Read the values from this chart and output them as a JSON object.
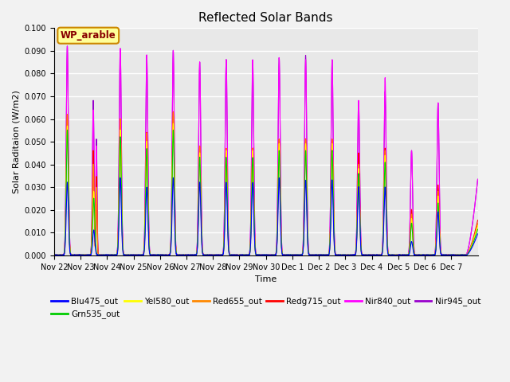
{
  "title": "Reflected Solar Bands",
  "ylabel": "Solar Raditaion (W/m2)",
  "xlabel": "Time",
  "ylim": [
    0,
    0.1
  ],
  "yticks": [
    0.0,
    0.01,
    0.02,
    0.03,
    0.04,
    0.05,
    0.06,
    0.07,
    0.08,
    0.09,
    0.1
  ],
  "annotation_text": "WP_arable",
  "annotation_box_color": "#ffff99",
  "annotation_box_edge": "#cc8800",
  "annotation_text_color": "#880000",
  "series": [
    {
      "name": "Blu475_out",
      "color": "#0000ff"
    },
    {
      "name": "Grn535_out",
      "color": "#00cc00"
    },
    {
      "name": "Yel580_out",
      "color": "#ffff00"
    },
    {
      "name": "Red655_out",
      "color": "#ff8800"
    },
    {
      "name": "Redg715_out",
      "color": "#ff0000"
    },
    {
      "name": "Nir840_out",
      "color": "#ff00ff"
    },
    {
      "name": "Nir945_out",
      "color": "#9900cc"
    }
  ],
  "n_days": 16,
  "day_labels": [
    "Nov 22",
    "Nov 23",
    "Nov 24",
    "Nov 25",
    "Nov 26",
    "Nov 27",
    "Nov 28",
    "Nov 29",
    "Nov 30",
    "Dec 1",
    "Dec 2",
    "Dec 3",
    "Dec 4",
    "Dec 5",
    "Dec 6",
    "Dec 7"
  ],
  "peak_heights": {
    "Nir840_out": [
      0.092,
      0.064,
      0.091,
      0.088,
      0.09,
      0.085,
      0.086,
      0.086,
      0.087,
      0.086,
      0.086,
      0.068,
      0.078,
      0.046,
      0.067,
      0.0
    ],
    "Nir945_out": [
      0.092,
      0.068,
      0.091,
      0.088,
      0.09,
      0.085,
      0.086,
      0.086,
      0.087,
      0.088,
      0.086,
      0.068,
      0.072,
      0.046,
      0.067,
      0.0
    ],
    "Redg715_out": [
      0.062,
      0.046,
      0.06,
      0.054,
      0.063,
      0.048,
      0.047,
      0.047,
      0.051,
      0.051,
      0.051,
      0.045,
      0.047,
      0.02,
      0.031,
      0.0
    ],
    "Red655_out": [
      0.062,
      0.04,
      0.06,
      0.054,
      0.063,
      0.048,
      0.047,
      0.047,
      0.051,
      0.051,
      0.051,
      0.04,
      0.046,
      0.018,
      0.028,
      0.0
    ],
    "Yel580_out": [
      0.057,
      0.028,
      0.055,
      0.05,
      0.058,
      0.045,
      0.046,
      0.046,
      0.049,
      0.049,
      0.049,
      0.038,
      0.044,
      0.016,
      0.026,
      0.0
    ],
    "Grn535_out": [
      0.055,
      0.025,
      0.052,
      0.047,
      0.055,
      0.043,
      0.043,
      0.043,
      0.046,
      0.046,
      0.046,
      0.036,
      0.041,
      0.014,
      0.023,
      0.0
    ],
    "Blu475_out": [
      0.032,
      0.011,
      0.034,
      0.03,
      0.034,
      0.032,
      0.032,
      0.032,
      0.034,
      0.033,
      0.033,
      0.03,
      0.03,
      0.006,
      0.019,
      0.0
    ]
  },
  "day23_nir_secondary_peak": 0.068,
  "background_color": "#e8e8e8",
  "grid_color": "#ffffff",
  "figsize": [
    6.4,
    4.8
  ],
  "dpi": 100
}
